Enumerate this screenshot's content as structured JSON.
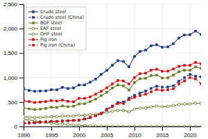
{
  "chart_data": {
    "type": "line",
    "x": [
      1990,
      1991,
      1992,
      1993,
      1994,
      1995,
      1996,
      1997,
      1998,
      1999,
      2000,
      2001,
      2002,
      2003,
      2004,
      2005,
      2006,
      2007,
      2008,
      2009,
      2010,
      2011,
      2012,
      2013,
      2014,
      2015,
      2016,
      2017,
      2018,
      2019,
      2020,
      2021,
      2022
    ],
    "series": [
      {
        "name": "Crude steel",
        "color": "#1a3a82",
        "marker": "square",
        "line_style": "solid",
        "values": [
          770,
          736,
          720,
          725,
          728,
          752,
          750,
          800,
          777,
          788,
          848,
          850,
          905,
          970,
          1065,
          1147,
          1250,
          1346,
          1330,
          1220,
          1431,
          1534,
          1560,
          1650,
          1670,
          1620,
          1628,
          1693,
          1808,
          1870,
          1878,
          1950,
          1880
        ]
      },
      {
        "name": "Crude steel (China)",
        "color": "#1a3a82",
        "marker": "square",
        "line_style": "dashed",
        "values": [
          66,
          71,
          80,
          90,
          92,
          96,
          102,
          108,
          114,
          121,
          128,
          151,
          182,
          222,
          272,
          355,
          419,
          490,
          500,
          577,
          637,
          683,
          724,
          779,
          823,
          804,
          808,
          832,
          928,
          996,
          1065,
          1030,
          1013
        ]
      },
      {
        "name": "BOF steel",
        "color": "#6b7a22",
        "marker": "square",
        "line_style": "solid",
        "values": [
          380,
          360,
          350,
          355,
          370,
          395,
          390,
          420,
          405,
          415,
          460,
          465,
          510,
          560,
          630,
          700,
          785,
          850,
          830,
          745,
          900,
          975,
          985,
          1040,
          1050,
          990,
          995,
          1050,
          1120,
          1150,
          1150,
          1220,
          1190
        ]
      },
      {
        "name": "EAF steel",
        "color": "#6b7a22",
        "marker": "circle",
        "line_style": "solid",
        "values": [
          200,
          190,
          185,
          190,
          192,
          200,
          202,
          215,
          210,
          215,
          230,
          228,
          240,
          250,
          270,
          290,
          310,
          330,
          330,
          300,
          355,
          375,
          380,
          400,
          420,
          405,
          410,
          430,
          450,
          460,
          460,
          475,
          470
        ]
      },
      {
        "name": "OHF steel",
        "color": "#6b7a22",
        "marker": "circle",
        "line_style": "solid",
        "values": [
          145,
          130,
          120,
          100,
          80,
          68,
          60,
          50,
          38,
          30,
          25,
          20,
          15,
          10,
          8,
          5,
          4,
          3,
          2,
          1,
          1,
          1,
          1,
          1,
          1,
          1,
          1,
          1,
          1,
          1,
          1,
          1,
          1
        ]
      },
      {
        "name": "Pig iron",
        "color": "#cc1111",
        "marker": "square",
        "line_style": "solid",
        "values": [
          530,
          510,
          490,
          500,
          510,
          530,
          520,
          540,
          515,
          505,
          575,
          575,
          605,
          660,
          720,
          790,
          870,
          940,
          930,
          870,
          1000,
          1080,
          1090,
          1150,
          1170,
          1130,
          1130,
          1175,
          1230,
          1250,
          1250,
          1310,
          1280
        ]
      },
      {
        "name": "Pig iron (China)",
        "color": "#cc1111",
        "marker": "square",
        "line_style": "dashed",
        "values": [
          63,
          68,
          75,
          87,
          97,
          105,
          107,
          115,
          120,
          125,
          131,
          155,
          180,
          220,
          260,
          340,
          405,
          470,
          470,
          549,
          596,
          629,
          660,
          710,
          755,
          740,
          750,
          772,
          870,
          930,
          1000,
          975,
          870
        ]
      }
    ],
    "xlim": [
      1990,
      2022
    ],
    "xticks": [
      1990,
      1995,
      2000,
      2005,
      2010,
      2015,
      2020
    ],
    "ylim": [
      0,
      2500
    ],
    "yticks": [
      0,
      500,
      {
        "value": 1000,
        "label": "1,000"
      },
      {
        "value": 1500,
        "label": "1,500"
      },
      {
        "value": 2000,
        "label": "2,000"
      },
      {
        "value": 2500,
        "label": "2,500"
      }
    ],
    "grid": true,
    "legend": "upper-left"
  }
}
